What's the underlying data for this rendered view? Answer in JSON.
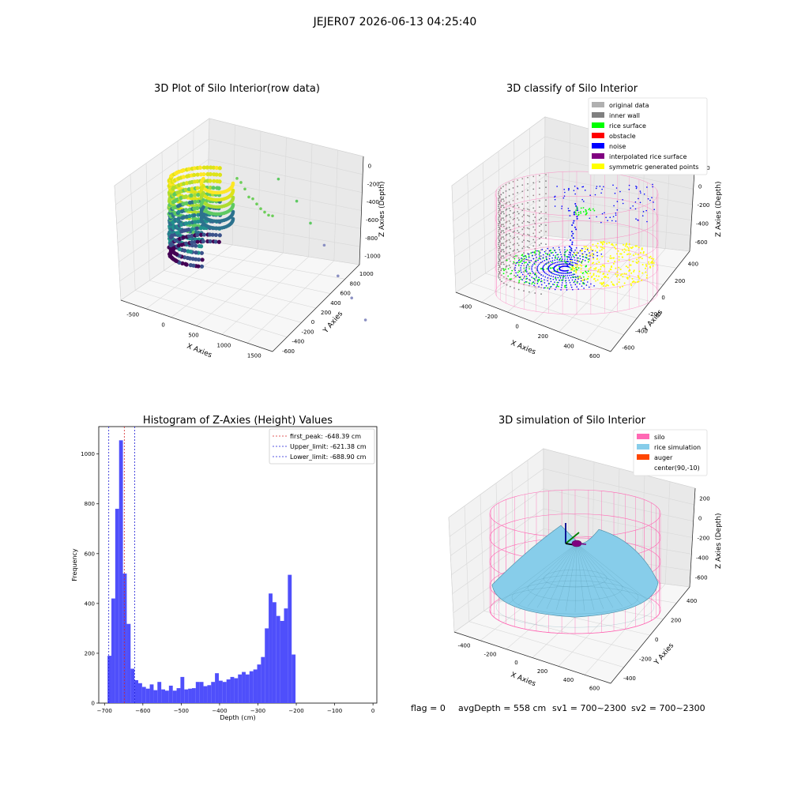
{
  "figure": {
    "suptitle": "JEJER07 2026-06-13 04:25:40",
    "footer": {
      "flag": "flag = 0",
      "avg_depth": "avgDepth = 558 cm",
      "sv1": "sv1 = 700~2300",
      "sv2": "sv2 = 700~2300"
    }
  },
  "colors": {
    "hist_bar": "#4f4ffb",
    "peak_line": "#d62728",
    "limit_line": "#1f1fd6",
    "silo": "#ff69b4",
    "rice": "#87cdea",
    "auger": "#ff4500",
    "inner_wall": "#808080",
    "original": "#b0b0b0",
    "rice_surface": "#00ff00",
    "obstacle": "#ff0000",
    "noise": "#0000ff",
    "interpolated": "#800080",
    "symmetric": "#ffff00"
  },
  "chart_data": [
    {
      "type": "scatter",
      "title": "3D Plot of Silo Interior(row data)",
      "xlabel": "X Axies",
      "ylabel": "Y Axies",
      "zlabel": "Z Axies (Depth)",
      "x_ticks": [
        "-500",
        "0",
        "500",
        "1000",
        "1500"
      ],
      "y_ticks": [
        "-600",
        "-400",
        "-200",
        "0",
        "200",
        "400",
        "600",
        "800",
        "1000"
      ],
      "z_ticks": [
        "0",
        "-200",
        "-400",
        "-600",
        "-800",
        "-1000"
      ],
      "xlim": [
        -800,
        1700
      ],
      "ylim": [
        -700,
        1000
      ],
      "zlim": [
        -1050,
        50
      ],
      "colormap": "viridis",
      "outlier_points": [
        {
          "x": 600,
          "y": 100,
          "z": -350
        },
        {
          "x": 800,
          "y": 150,
          "z": -450
        },
        {
          "x": 950,
          "y": 200,
          "z": -550
        },
        {
          "x": 1100,
          "y": 250,
          "z": -650
        },
        {
          "x": 1250,
          "y": 300,
          "z": -800
        },
        {
          "x": 1400,
          "y": 350,
          "z": -900
        },
        {
          "x": 1550,
          "y": 400,
          "z": -1000
        }
      ]
    },
    {
      "type": "scatter",
      "title": "3D classify of Silo Interior",
      "xlabel": "X Axies",
      "ylabel": "Y Axies",
      "zlabel": "Z Axies (Depth)",
      "x_ticks": [
        "-400",
        "-200",
        "0",
        "200",
        "400",
        "600"
      ],
      "y_ticks": [
        "-600",
        "-400",
        "-200",
        "0",
        "200",
        "400"
      ],
      "z_ticks": [
        "200",
        "0",
        "-200",
        "-400",
        "-600"
      ],
      "xlim": [
        -500,
        650
      ],
      "ylim": [
        -650,
        500
      ],
      "zlim": [
        -720,
        220
      ],
      "legend": [
        "original data",
        "inner wall",
        "rice surface",
        "obstacle",
        "noise",
        "interpolated rice surface",
        "symmetric generated points"
      ],
      "legend_colors": [
        "#b0b0b0",
        "#808080",
        "#00ff00",
        "#ff0000",
        "#0000ff",
        "#800080",
        "#ffff00"
      ],
      "legend_position": "top-right"
    },
    {
      "type": "bar",
      "title": "Histogram of Z-Axies (Height) Values",
      "xlabel": "Depth (cm)",
      "ylabel": "Frequency",
      "xlim": [
        -715,
        10
      ],
      "ylim": [
        0,
        1110
      ],
      "x_ticks": [
        -700,
        -600,
        -500,
        -400,
        -300,
        -200,
        -100,
        0
      ],
      "y_ticks": [
        0,
        200,
        400,
        600,
        800,
        1000
      ],
      "bin_start": -692,
      "bin_width": 10,
      "values": [
        190,
        420,
        780,
        1055,
        520,
        318,
        138,
        92,
        80,
        65,
        58,
        75,
        52,
        85,
        55,
        50,
        70,
        50,
        60,
        105,
        55,
        58,
        60,
        85,
        85,
        68,
        72,
        85,
        120,
        90,
        85,
        95,
        105,
        100,
        115,
        125,
        115,
        128,
        135,
        155,
        185,
        300,
        440,
        405,
        350,
        330,
        380,
        515,
        195
      ],
      "vlines": [
        {
          "x": -648.39,
          "label": "first_peak: -648.39 cm",
          "style": "peak"
        },
        {
          "x": -621.38,
          "label": "Upper_limit: -621.38 cm",
          "style": "limit"
        },
        {
          "x": -688.9,
          "label": "Lower_limit: -688.90 cm",
          "style": "limit"
        }
      ],
      "legend_position": "top-right"
    },
    {
      "type": "area",
      "title": "3D simulation of Silo Interior",
      "xlabel": "X Axies",
      "ylabel": "Y Axies",
      "zlabel": "Z Axies (Depth)",
      "x_ticks": [
        "-400",
        "-200",
        "0",
        "200",
        "400",
        "600"
      ],
      "y_ticks": [
        "-400",
        "-200",
        "0",
        "200",
        "400"
      ],
      "z_ticks": [
        "200",
        "0",
        "-200",
        "-400",
        "-600"
      ],
      "xlim": [
        -500,
        650
      ],
      "ylim": [
        -500,
        500
      ],
      "zlim": [
        -720,
        220
      ],
      "legend": [
        "silo",
        "rice simulation",
        "auger",
        "center(90,-10)"
      ],
      "legend_colors": [
        "#ff69b4",
        "#87cdea",
        "#ff4500",
        ""
      ],
      "legend_position": "top-right",
      "center": [
        90,
        -10
      ]
    }
  ]
}
